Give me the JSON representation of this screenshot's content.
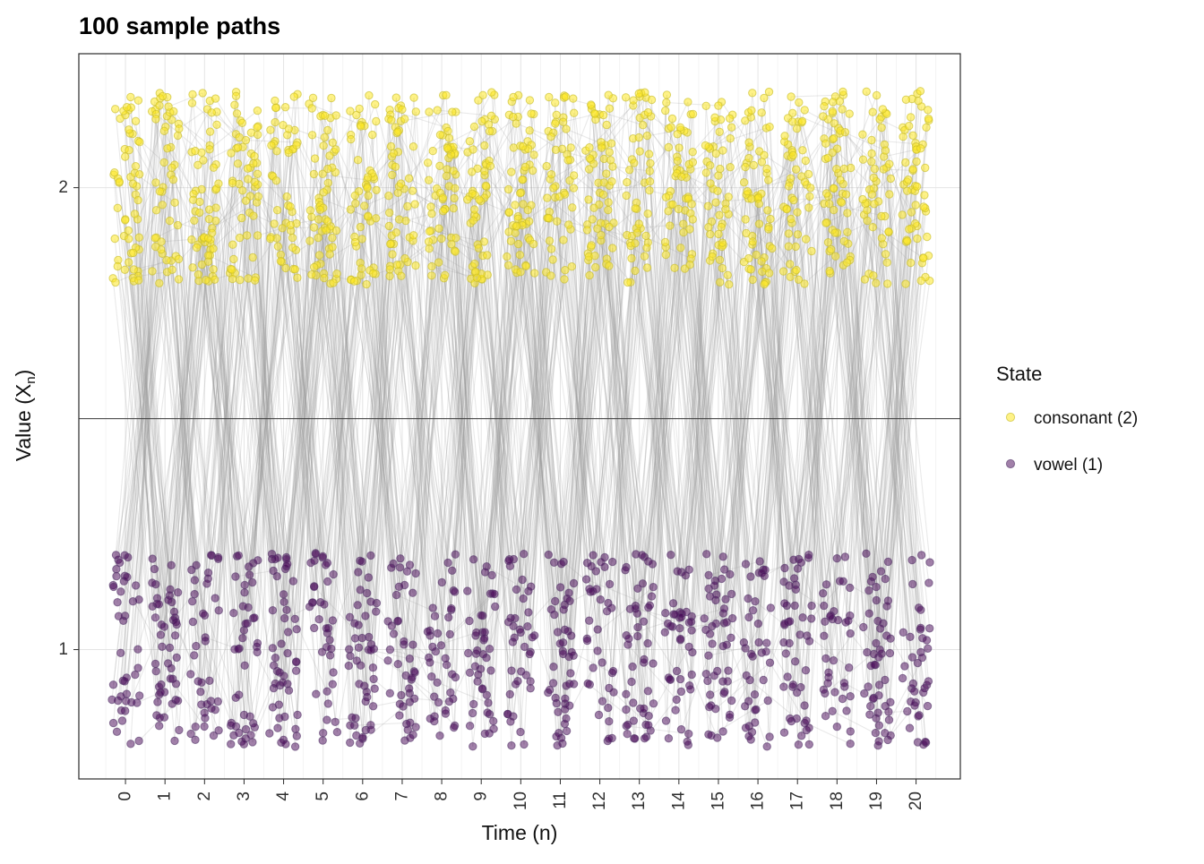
{
  "chart_data": {
    "type": "scatter",
    "title": "100 sample paths",
    "xlabel": "Time (n)",
    "ylabel": "Value (X_n)",
    "ylabel_parts": {
      "pre": "Value (X",
      "sub": "n",
      "post": ")"
    },
    "x_ticks": [
      0,
      1,
      2,
      3,
      4,
      5,
      6,
      7,
      8,
      9,
      10,
      11,
      12,
      13,
      14,
      15,
      16,
      17,
      18,
      19,
      20
    ],
    "y_ticks": [
      1,
      2
    ],
    "xlim": [
      -1.18,
      21.12
    ],
    "ylim": [
      0.72,
      2.29
    ],
    "grid": {
      "major_color": "#e4e4e4",
      "minor_color": "#f1f1f1",
      "minor_x_start": -0.5,
      "minor_x_end": 20.5,
      "minor_x_step": 1,
      "minor_y": [
        1.5
      ]
    },
    "panel": {
      "background": "#ffffff",
      "border_color": "#2b2b2b"
    },
    "reference_line": {
      "y": 1.5,
      "color": "#3a3a3a",
      "width": 1
    },
    "legend": {
      "title": "State",
      "entries": [
        {
          "label": "consonant (2)",
          "color": "#FDE725",
          "stroke": "#c8bd2d",
          "fill_opacity": 0.55
        },
        {
          "label": "vowel (1)",
          "color": "#440154",
          "stroke": "#5a3d6e",
          "fill_opacity": 0.5
        }
      ]
    },
    "series_model": {
      "description": "100 jittered sample paths of a two-state Markov chain over states vowel (1) and consonant (2), observed at integer times 0..20",
      "n_paths": 100,
      "time": {
        "start": 0,
        "end": 20,
        "step": 1
      },
      "states": [
        {
          "name": "vowel (1)",
          "value": 1,
          "color": "#440154",
          "stroke": "#5a3d6e",
          "fill_opacity": 0.5
        },
        {
          "name": "consonant (2)",
          "value": 2,
          "color": "#FDE725",
          "stroke": "#c8bd2d",
          "fill_opacity": 0.55
        }
      ],
      "transition": {
        "p_vowel_to_consonant": 0.872,
        "p_consonant_to_vowel": 0.663,
        "p_initial_consonant": 0.568
      },
      "jitter": {
        "x": 0.36,
        "y": 0.21
      },
      "seed": 42
    },
    "line_style": {
      "color": "#9a9a9a",
      "opacity": 0.22,
      "width": 1.1
    },
    "point_style": {
      "radius": 4.2,
      "stroke_width": 1,
      "stroke_opacity": 0.65
    }
  }
}
